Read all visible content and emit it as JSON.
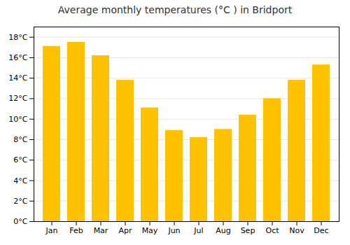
{
  "chart_data": {
    "type": "bar",
    "title": "Average monthly temperatures (°C ) in Bridport",
    "categories": [
      "Jan",
      "Feb",
      "Mar",
      "Apr",
      "May",
      "Jun",
      "Jul",
      "Aug",
      "Sep",
      "Oct",
      "Nov",
      "Dec"
    ],
    "values": [
      17.1,
      17.5,
      16.2,
      13.8,
      11.1,
      8.9,
      8.2,
      9.0,
      10.4,
      12.0,
      13.8,
      15.3
    ],
    "color": "#FFC200",
    "ylim": [
      0,
      19
    ],
    "yticks": [
      {
        "value": 0,
        "label": "0°C"
      },
      {
        "value": 2,
        "label": "2°C"
      },
      {
        "value": 4,
        "label": "4°C"
      },
      {
        "value": 6,
        "label": "6°C"
      },
      {
        "value": 8,
        "label": "8°C"
      },
      {
        "value": 10,
        "label": "10°C"
      },
      {
        "value": 12,
        "label": "12°C"
      },
      {
        "value": 14,
        "label": "14°C"
      },
      {
        "value": 16,
        "label": "16°C"
      },
      {
        "value": 18,
        "label": "18°C"
      }
    ],
    "grid": true
  }
}
